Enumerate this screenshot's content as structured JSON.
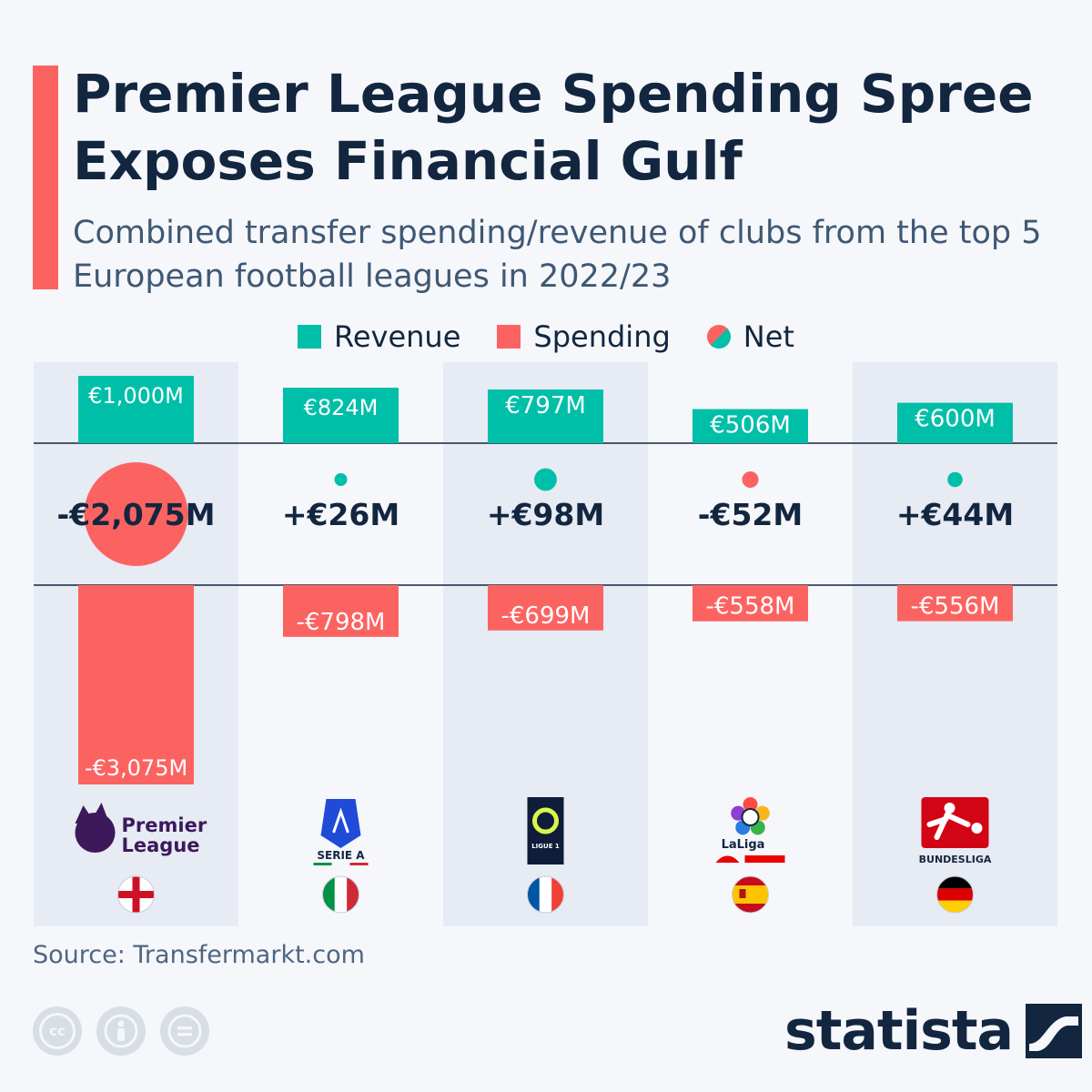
{
  "header": {
    "title": "Premier League Spending Spree Exposes Financial Gulf",
    "subtitle": "Combined transfer spending/revenue of clubs from the top 5 European football leagues in 2022/23"
  },
  "legend": {
    "revenue": "Revenue",
    "spending": "Spending",
    "net": "Net"
  },
  "colors": {
    "revenue": "#00bfa9",
    "spending": "#fb6361",
    "text": "#13263f",
    "panel": "#e6ebf4",
    "background": "#f5f7fb"
  },
  "chart_data": {
    "type": "bar",
    "categories": [
      "Premier League",
      "Serie A",
      "Ligue 1",
      "LaLiga",
      "Bundesliga"
    ],
    "countries": [
      "England",
      "Italy",
      "France",
      "Spain",
      "Germany"
    ],
    "series": [
      {
        "name": "Revenue",
        "values": [
          1000,
          824,
          797,
          506,
          600
        ],
        "labels": [
          "€1,000M",
          "€824M",
          "€797M",
          "€506M",
          "€600M"
        ]
      },
      {
        "name": "Spending",
        "values": [
          -3075,
          -798,
          -699,
          -558,
          -556
        ],
        "labels": [
          "-€3,075M",
          "-€798M",
          "-€699M",
          "-€558M",
          "-€556M"
        ]
      },
      {
        "name": "Net",
        "values": [
          -2075,
          26,
          98,
          -52,
          44
        ],
        "labels": [
          "-€2,075M",
          "+€26M",
          "+€98M",
          "-€52M",
          "+€44M"
        ]
      }
    ],
    "logo_text": [
      "Premier\nLeague",
      "SERIE A",
      "LIGUE 1",
      "LaLiga",
      "BUNDESLIGA"
    ],
    "legend_position": "top-center",
    "grid": false
  },
  "footer": {
    "source": "Source: Transfermarkt.com",
    "brand": "statista",
    "license_icons": [
      "cc-icon",
      "attribution-icon",
      "no-derivatives-icon"
    ]
  }
}
